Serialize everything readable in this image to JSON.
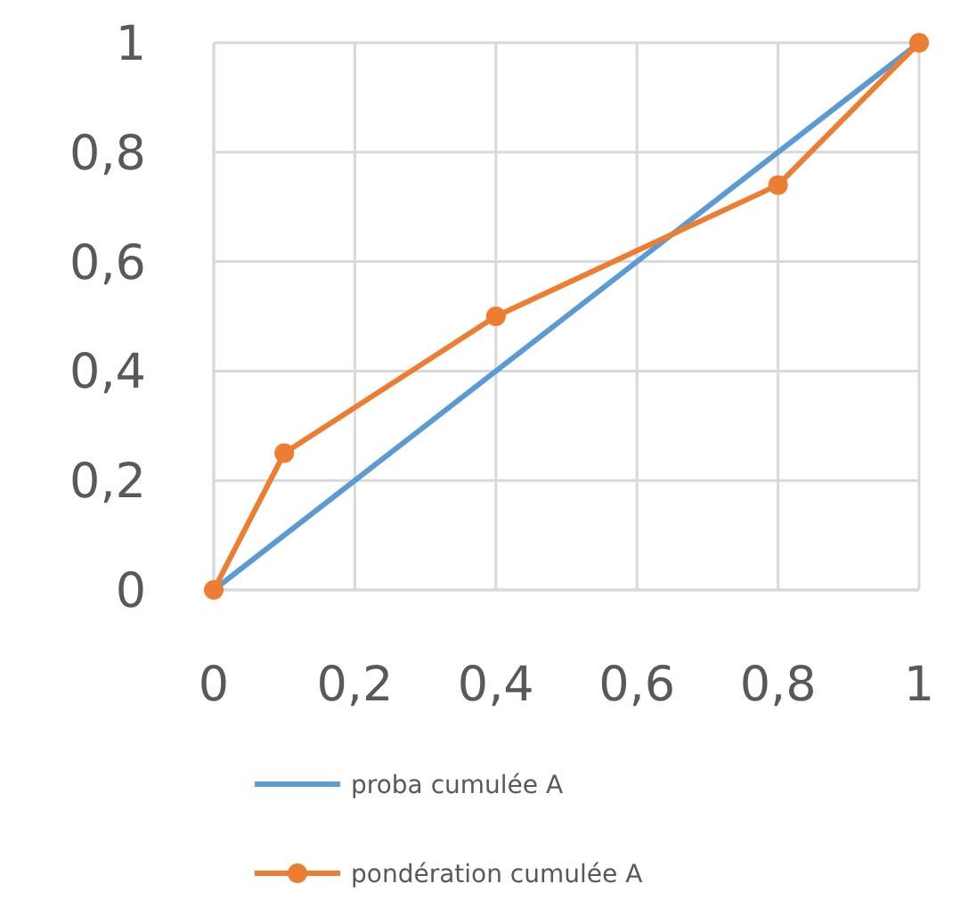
{
  "chart_data": {
    "type": "line",
    "xlim": [
      0,
      1
    ],
    "ylim": [
      0,
      1
    ],
    "xticks": [
      0,
      {
        "value": 0.2,
        "label": "0,2"
      },
      {
        "value": 0.4,
        "label": "0,4"
      },
      {
        "value": 0.6,
        "label": "0,6"
      },
      {
        "value": 0.8,
        "label": "0,8"
      },
      1
    ],
    "yticks": [
      0,
      {
        "value": 0.2,
        "label": "0,2"
      },
      {
        "value": 0.4,
        "label": "0,4"
      },
      {
        "value": 0.6,
        "label": "0,6"
      },
      {
        "value": 0.8,
        "label": "0,8"
      },
      1
    ],
    "grid": true,
    "legend": "bottom",
    "line_style": "solid",
    "series": [
      {
        "name": "proba cumulée A",
        "color": "#5b9bd5",
        "x": [
          0,
          1
        ],
        "values": [
          0,
          1
        ],
        "marker": "none"
      },
      {
        "name": "pondération cumulée A",
        "color": "#ed7d31",
        "x": [
          0,
          0.1,
          0.4,
          0.8,
          1
        ],
        "values": [
          0,
          0.25,
          0.5,
          0.74,
          1
        ],
        "marker": "circle"
      }
    ]
  }
}
